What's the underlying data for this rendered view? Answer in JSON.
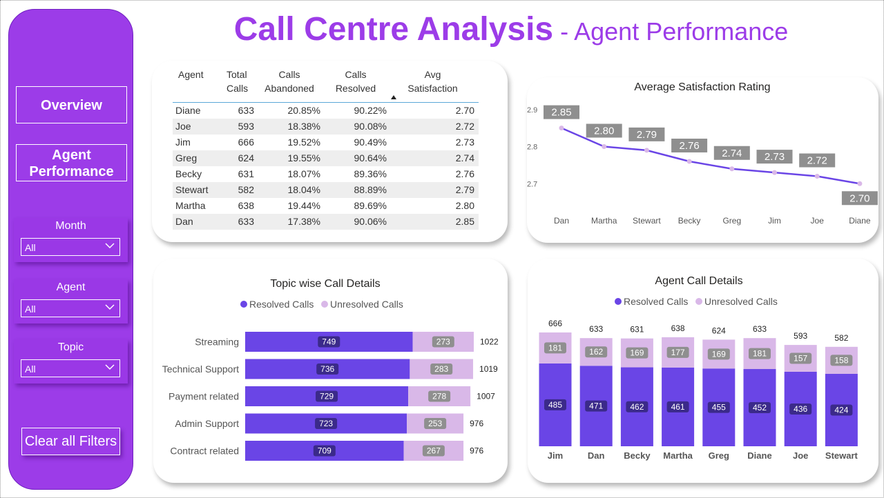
{
  "title": {
    "main": "Call Centre Analysis",
    "sub": " - Agent Performance"
  },
  "sidebar": {
    "nav": {
      "overview": "Overview",
      "agent_line1": "Agent",
      "agent_line2": "Performance"
    },
    "filters": {
      "month": {
        "label": "Month",
        "value": "All"
      },
      "agent": {
        "label": "Agent",
        "value": "All"
      },
      "topic": {
        "label": "Topic",
        "value": "All"
      }
    },
    "clear": "Clear all Filters"
  },
  "table": {
    "headers": {
      "agent": "Agent",
      "total1": "Total",
      "total2": "Calls",
      "aband1": "Calls",
      "aband2": "Abandoned",
      "resolved1": "Calls",
      "resolved2": "Resolved",
      "sat1": "Avg",
      "sat2": "Satisfaction"
    },
    "rows": [
      [
        "Diane",
        "633",
        "20.85%",
        "90.22%",
        "2.70"
      ],
      [
        "Joe",
        "593",
        "18.38%",
        "90.08%",
        "2.72"
      ],
      [
        "Jim",
        "666",
        "19.52%",
        "90.49%",
        "2.73"
      ],
      [
        "Greg",
        "624",
        "19.55%",
        "90.64%",
        "2.74"
      ],
      [
        "Becky",
        "631",
        "18.07%",
        "89.36%",
        "2.76"
      ],
      [
        "Stewart",
        "582",
        "18.04%",
        "88.89%",
        "2.79"
      ],
      [
        "Martha",
        "638",
        "19.44%",
        "89.69%",
        "2.80"
      ],
      [
        "Dan",
        "633",
        "17.38%",
        "90.06%",
        "2.85"
      ]
    ]
  },
  "colors": {
    "primary": "#9c3ce8",
    "resolved": "#6a45e6",
    "unresolved": "#d9b8e8",
    "line": "#6a45e6",
    "label_box": "#8f8f8f"
  },
  "chart_data": [
    {
      "type": "line",
      "title": "Average Satisfaction Rating",
      "categories": [
        "Dan",
        "Martha",
        "Stewart",
        "Becky",
        "Greg",
        "Jim",
        "Joe",
        "Diane"
      ],
      "values": [
        2.85,
        2.8,
        2.79,
        2.76,
        2.74,
        2.73,
        2.72,
        2.7
      ],
      "labels": [
        "2.85",
        "2.80",
        "2.79",
        "2.76",
        "2.74",
        "2.73",
        "2.72",
        "2.70"
      ],
      "yticks": [
        "2.9",
        "2.8",
        "2.7"
      ],
      "ylim": [
        2.68,
        2.92
      ]
    },
    {
      "type": "bar",
      "orientation": "horizontal",
      "stacked": true,
      "title": "Topic wise Call Details",
      "legend": [
        "Resolved Calls",
        "Unresolved Calls"
      ],
      "categories": [
        "Streaming",
        "Technical Support",
        "Payment related",
        "Admin Support",
        "Contract related"
      ],
      "series": [
        {
          "name": "Resolved Calls",
          "values": [
            749,
            736,
            729,
            723,
            709
          ]
        },
        {
          "name": "Unresolved Calls",
          "values": [
            273,
            283,
            278,
            253,
            267
          ]
        }
      ],
      "totals": [
        1022,
        1019,
        1007,
        976,
        976
      ]
    },
    {
      "type": "bar",
      "orientation": "vertical",
      "stacked": true,
      "title": "Agent Call Details",
      "legend": [
        "Resolved Calls",
        "Unresolved Calls"
      ],
      "categories": [
        "Jim",
        "Dan",
        "Becky",
        "Martha",
        "Greg",
        "Diane",
        "Joe",
        "Stewart"
      ],
      "series": [
        {
          "name": "Resolved Calls",
          "values": [
            485,
            471,
            462,
            461,
            455,
            452,
            436,
            424
          ]
        },
        {
          "name": "Unresolved Calls",
          "values": [
            181,
            162,
            169,
            177,
            169,
            181,
            157,
            158
          ]
        }
      ],
      "totals": [
        666,
        633,
        631,
        638,
        624,
        633,
        593,
        582
      ]
    }
  ]
}
